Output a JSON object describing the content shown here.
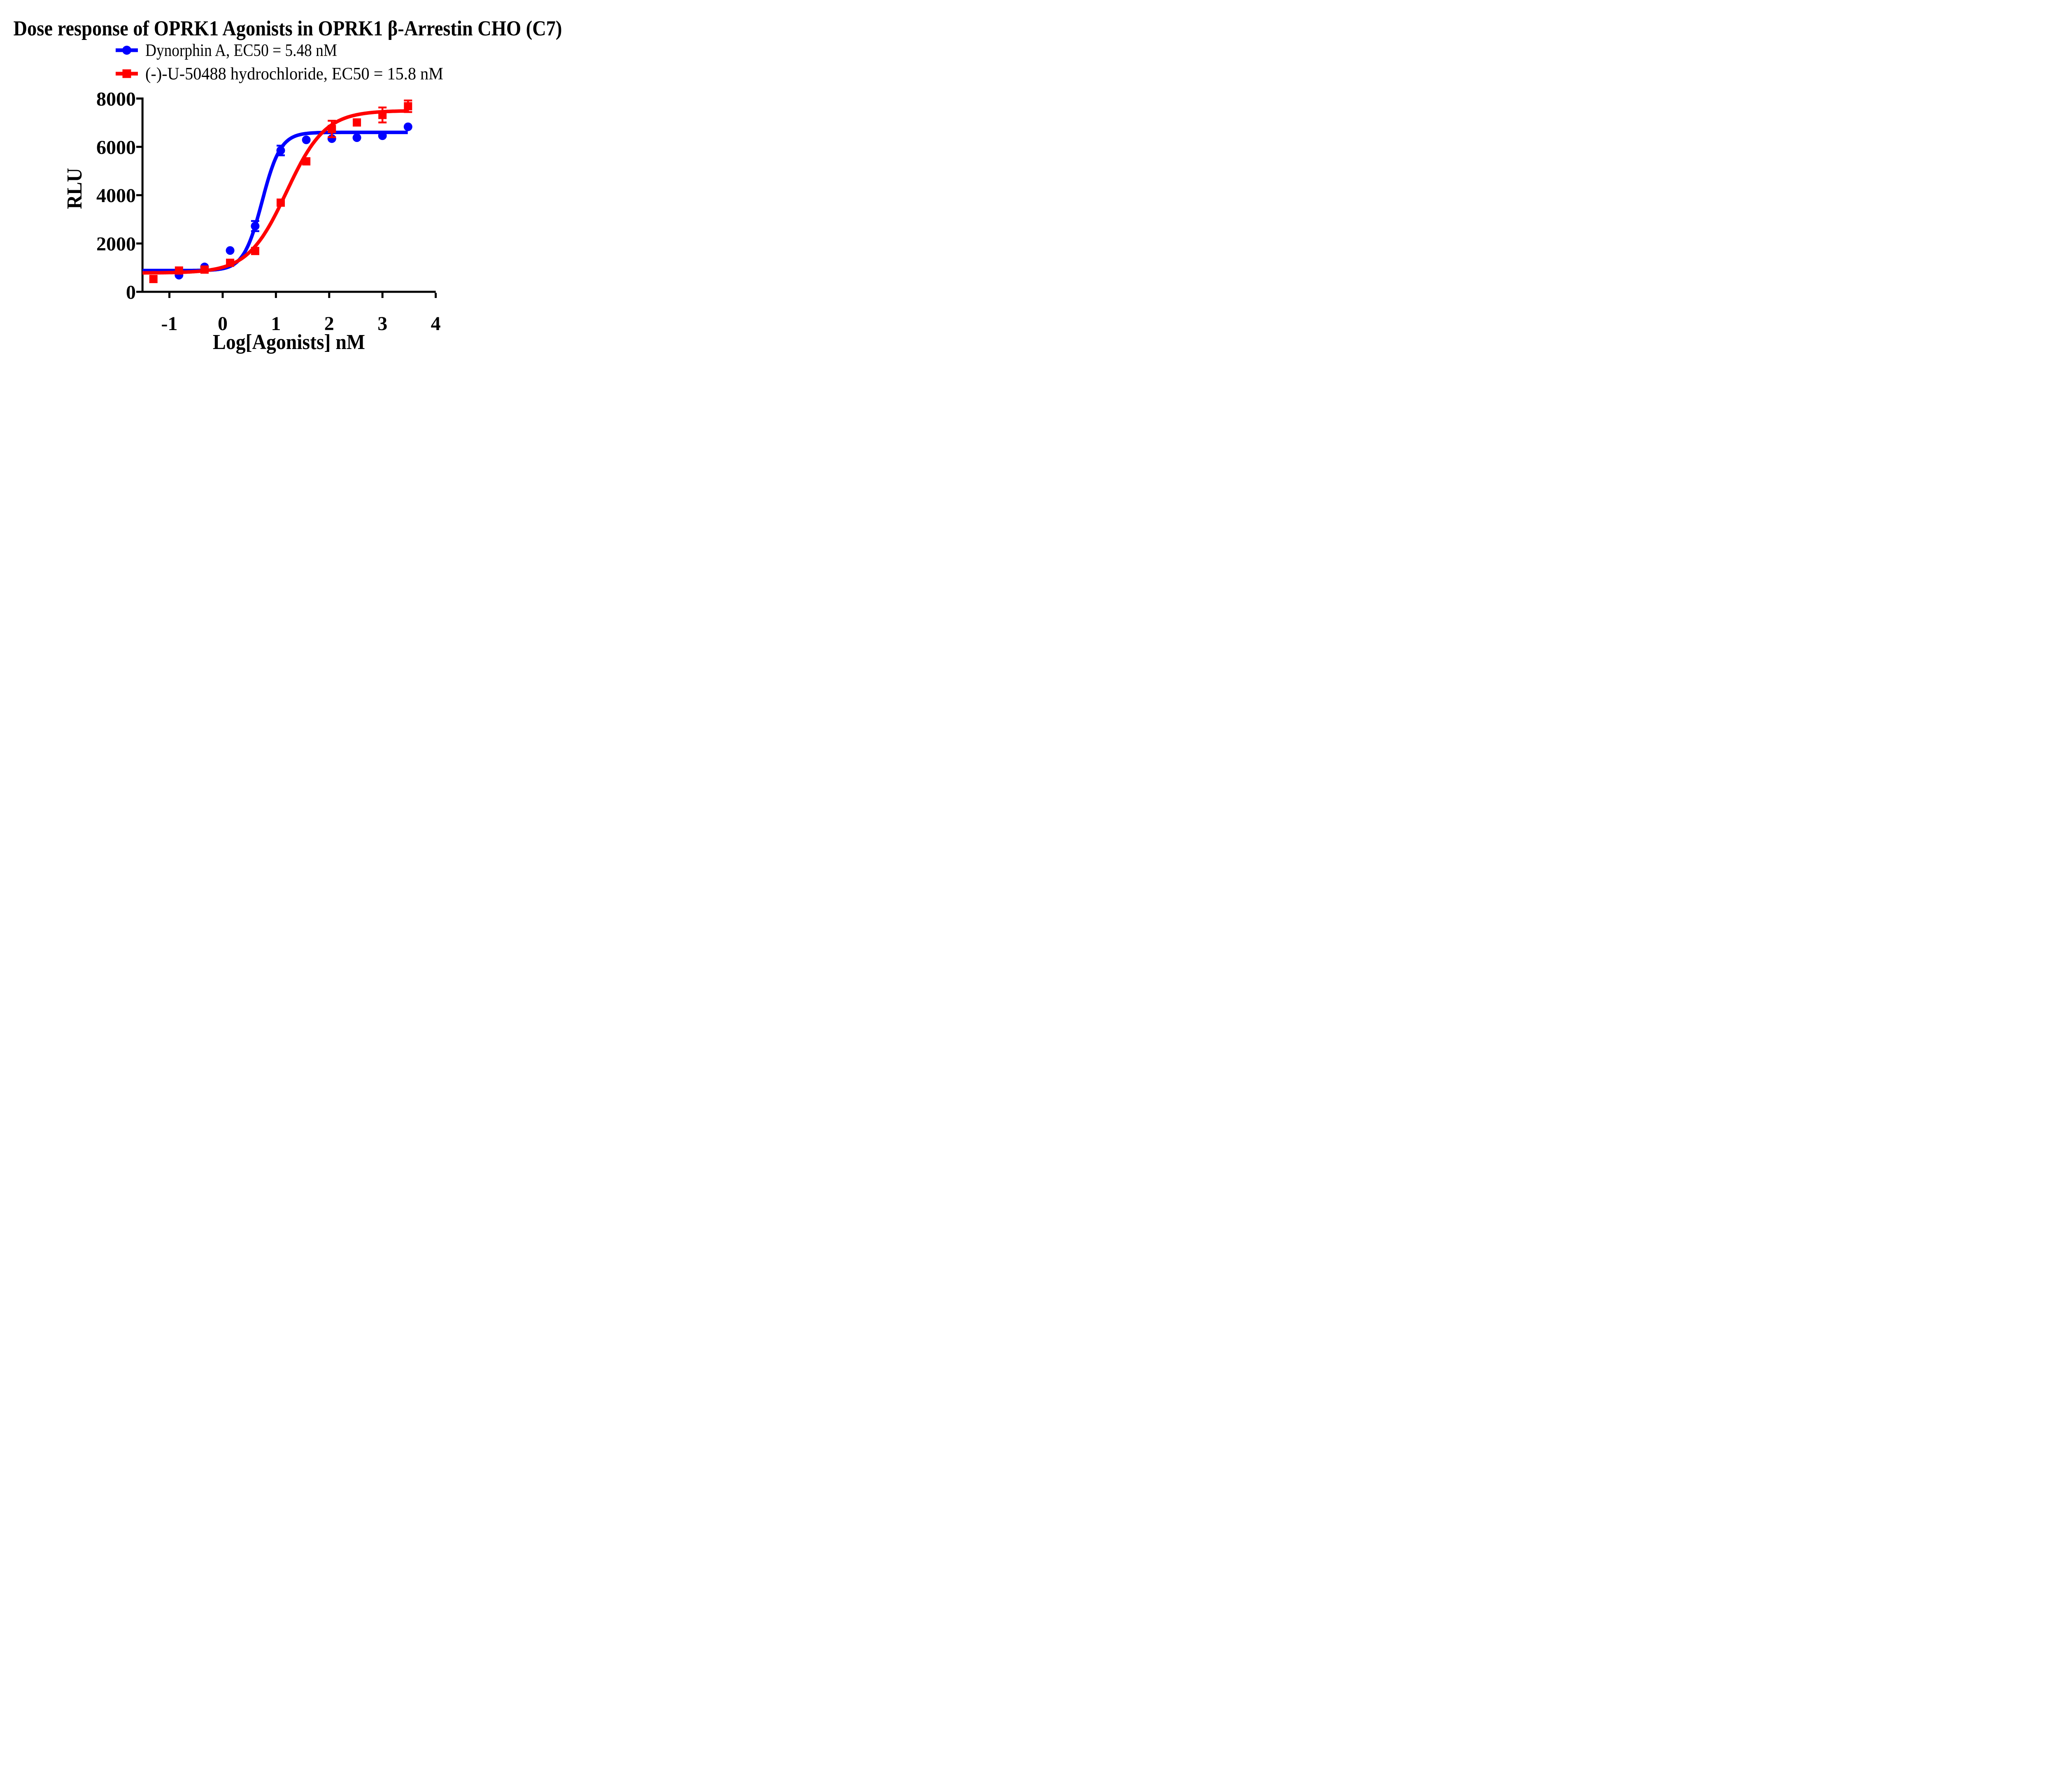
{
  "title": "Dose response of OPRK1 Agonists in OPRK1 β-Arrestin CHO (C7)",
  "background_color": "#FFFFFF",
  "text_color": "#000000",
  "legend": {
    "items": [
      {
        "label": "Dynorphin A, EC50 = 5.48 nM",
        "color": "#0000FF",
        "marker": "circle"
      },
      {
        "label": "(-)-U-50488 hydrochloride, EC50 = 15.8 nM",
        "color": "#FF0000",
        "marker": "square"
      }
    ]
  },
  "chart_data": {
    "type": "scatter",
    "subtype": "dose-response-curves",
    "title": "Dose response of OPRK1 Agonists in OPRK1 β-Arrestin CHO (C7)",
    "xlabel": "Log[Agonists] nM",
    "ylabel": "RLU",
    "xlim": [
      -1.505,
      4
    ],
    "ylim": [
      0,
      8000
    ],
    "x_ticks": [
      -1,
      0,
      1,
      2,
      3,
      4
    ],
    "y_ticks": [
      0,
      2000,
      4000,
      6000,
      8000
    ],
    "grid": false,
    "legend_position": "top-left under title",
    "series": [
      {
        "id": "dynorphin-a",
        "name": "Dynorphin A",
        "ec50_label": "EC50 = 5.48 nM",
        "color": "#0000FF",
        "marker": "circle",
        "x": [
          -0.82,
          -0.34,
          0.14,
          0.61,
          1.09,
          1.57,
          2.05,
          2.52,
          3.0,
          3.48
        ],
        "y": [
          690,
          1030,
          1710,
          2720,
          5850,
          6290,
          6340,
          6380,
          6460,
          6830
        ],
        "yerr": [
          0,
          0,
          0,
          210,
          200,
          0,
          0,
          0,
          0,
          0
        ],
        "fit": {
          "model": "log(agonist) vs response (variable slope)",
          "bottom": 880,
          "top": 6600,
          "logEC50": 0.74,
          "hill": 2.5,
          "x_start": -1.505,
          "x_end": 3.48
        }
      },
      {
        "id": "u-50488-hydrochloride",
        "name": "(-)-U-50488 hydrochloride",
        "ec50_label": "EC50 = 15.8 nM",
        "color": "#FF0000",
        "marker": "square",
        "x": [
          -1.3,
          -0.82,
          -0.34,
          0.14,
          0.61,
          1.09,
          1.57,
          2.05,
          2.52,
          3.0,
          3.48
        ],
        "y": [
          530,
          880,
          920,
          1200,
          1690,
          3690,
          5400,
          6740,
          7010,
          7320,
          7680
        ],
        "yerr": [
          0,
          0,
          0,
          0,
          0,
          0,
          0,
          340,
          0,
          310,
          240
        ],
        "fit": {
          "model": "log(agonist) vs response (variable slope)",
          "bottom": 780,
          "top": 7500,
          "logEC50": 1.2,
          "hill": 1.2,
          "x_start": -1.505,
          "x_end": 3.48
        }
      }
    ]
  }
}
